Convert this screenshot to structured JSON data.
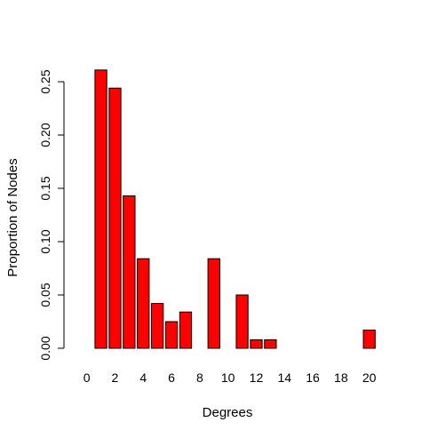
{
  "chart_data": {
    "type": "bar",
    "categories": [
      "0",
      "1",
      "2",
      "3",
      "4",
      "5",
      "6",
      "7",
      "8",
      "9",
      "10",
      "11",
      "12",
      "13",
      "14",
      "15",
      "16",
      "17",
      "18",
      "19",
      "20"
    ],
    "values": [
      0,
      0.261,
      0.244,
      0.143,
      0.084,
      0.042,
      0.025,
      0.034,
      0,
      0.084,
      0,
      0.05,
      0.008,
      0.008,
      0,
      0,
      0,
      0,
      0,
      0,
      0.017
    ],
    "title": "",
    "xlabel": "Degrees",
    "ylabel": "Proportion of Nodes",
    "ylim": [
      0,
      0.27
    ],
    "yticks": [
      "0.00",
      "0.05",
      "0.10",
      "0.15",
      "0.20",
      "0.25"
    ],
    "x_tick_labels": [
      "0",
      "2",
      "4",
      "6",
      "8",
      "10",
      "12",
      "14",
      "16",
      "18",
      "20"
    ],
    "bar_color": "#ff0000",
    "bar_edge_color": "#000000",
    "grid": false
  }
}
